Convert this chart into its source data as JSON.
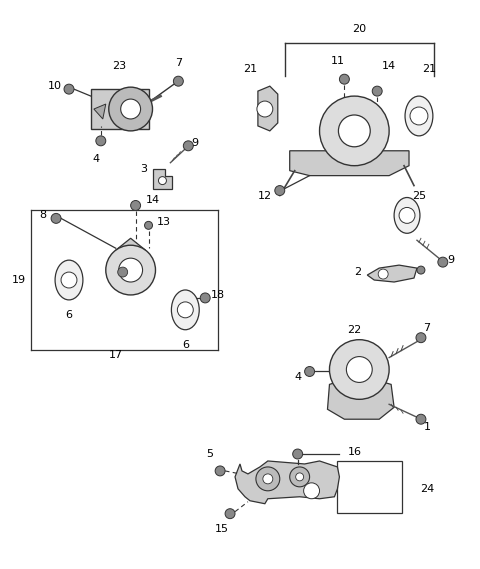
{
  "background_color": "#ffffff",
  "figsize": [
    4.8,
    5.69
  ],
  "dpi": 100,
  "lc": "#333333",
  "label_fontsize": 8.0
}
